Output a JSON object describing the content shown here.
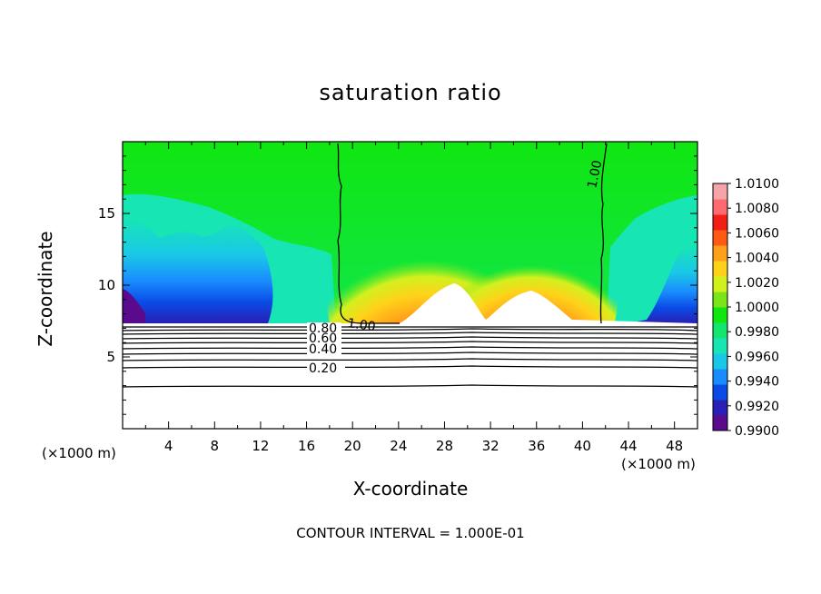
{
  "chart_data": {
    "type": "heatmap",
    "title": "saturation ratio",
    "xlabel": "X-coordinate",
    "ylabel": "Z-coordinate",
    "x_unit": "(×1000 m)",
    "xlim": [
      0,
      50
    ],
    "ylim": [
      0,
      20
    ],
    "x_ticks": [
      "4",
      "8",
      "12",
      "16",
      "20",
      "24",
      "28",
      "32",
      "36",
      "40",
      "44",
      "48"
    ],
    "y_ticks": [
      "5",
      "10",
      "15"
    ],
    "colorbar": {
      "ticks": [
        "0.9900",
        "0.9920",
        "0.9940",
        "0.9960",
        "0.9980",
        "1.0000",
        "1.0020",
        "1.0040",
        "1.0060",
        "1.0080",
        "1.0100"
      ],
      "colors": [
        "#5a0a8c",
        "#2a1fb4",
        "#0a4be6",
        "#1a8cff",
        "#19c8e6",
        "#17e6b4",
        "#12e66e",
        "#10e610",
        "#7ae61a",
        "#d2f01e",
        "#ffd21a",
        "#ffa01a",
        "#ff5a14",
        "#f01e14",
        "#ff6a70",
        "#f5a5a8"
      ]
    },
    "contours": [
      {
        "level": "1.00",
        "note": "two near-vertical lines near x≈18.5 and x≈41.5 bounding the supersaturated zone"
      },
      {
        "level": "0.80"
      },
      {
        "level": "0.60"
      },
      {
        "level": "0.40"
      },
      {
        "level": "0.20"
      }
    ],
    "annotation": "CONTOUR INTERVAL = 1.000E-01"
  }
}
